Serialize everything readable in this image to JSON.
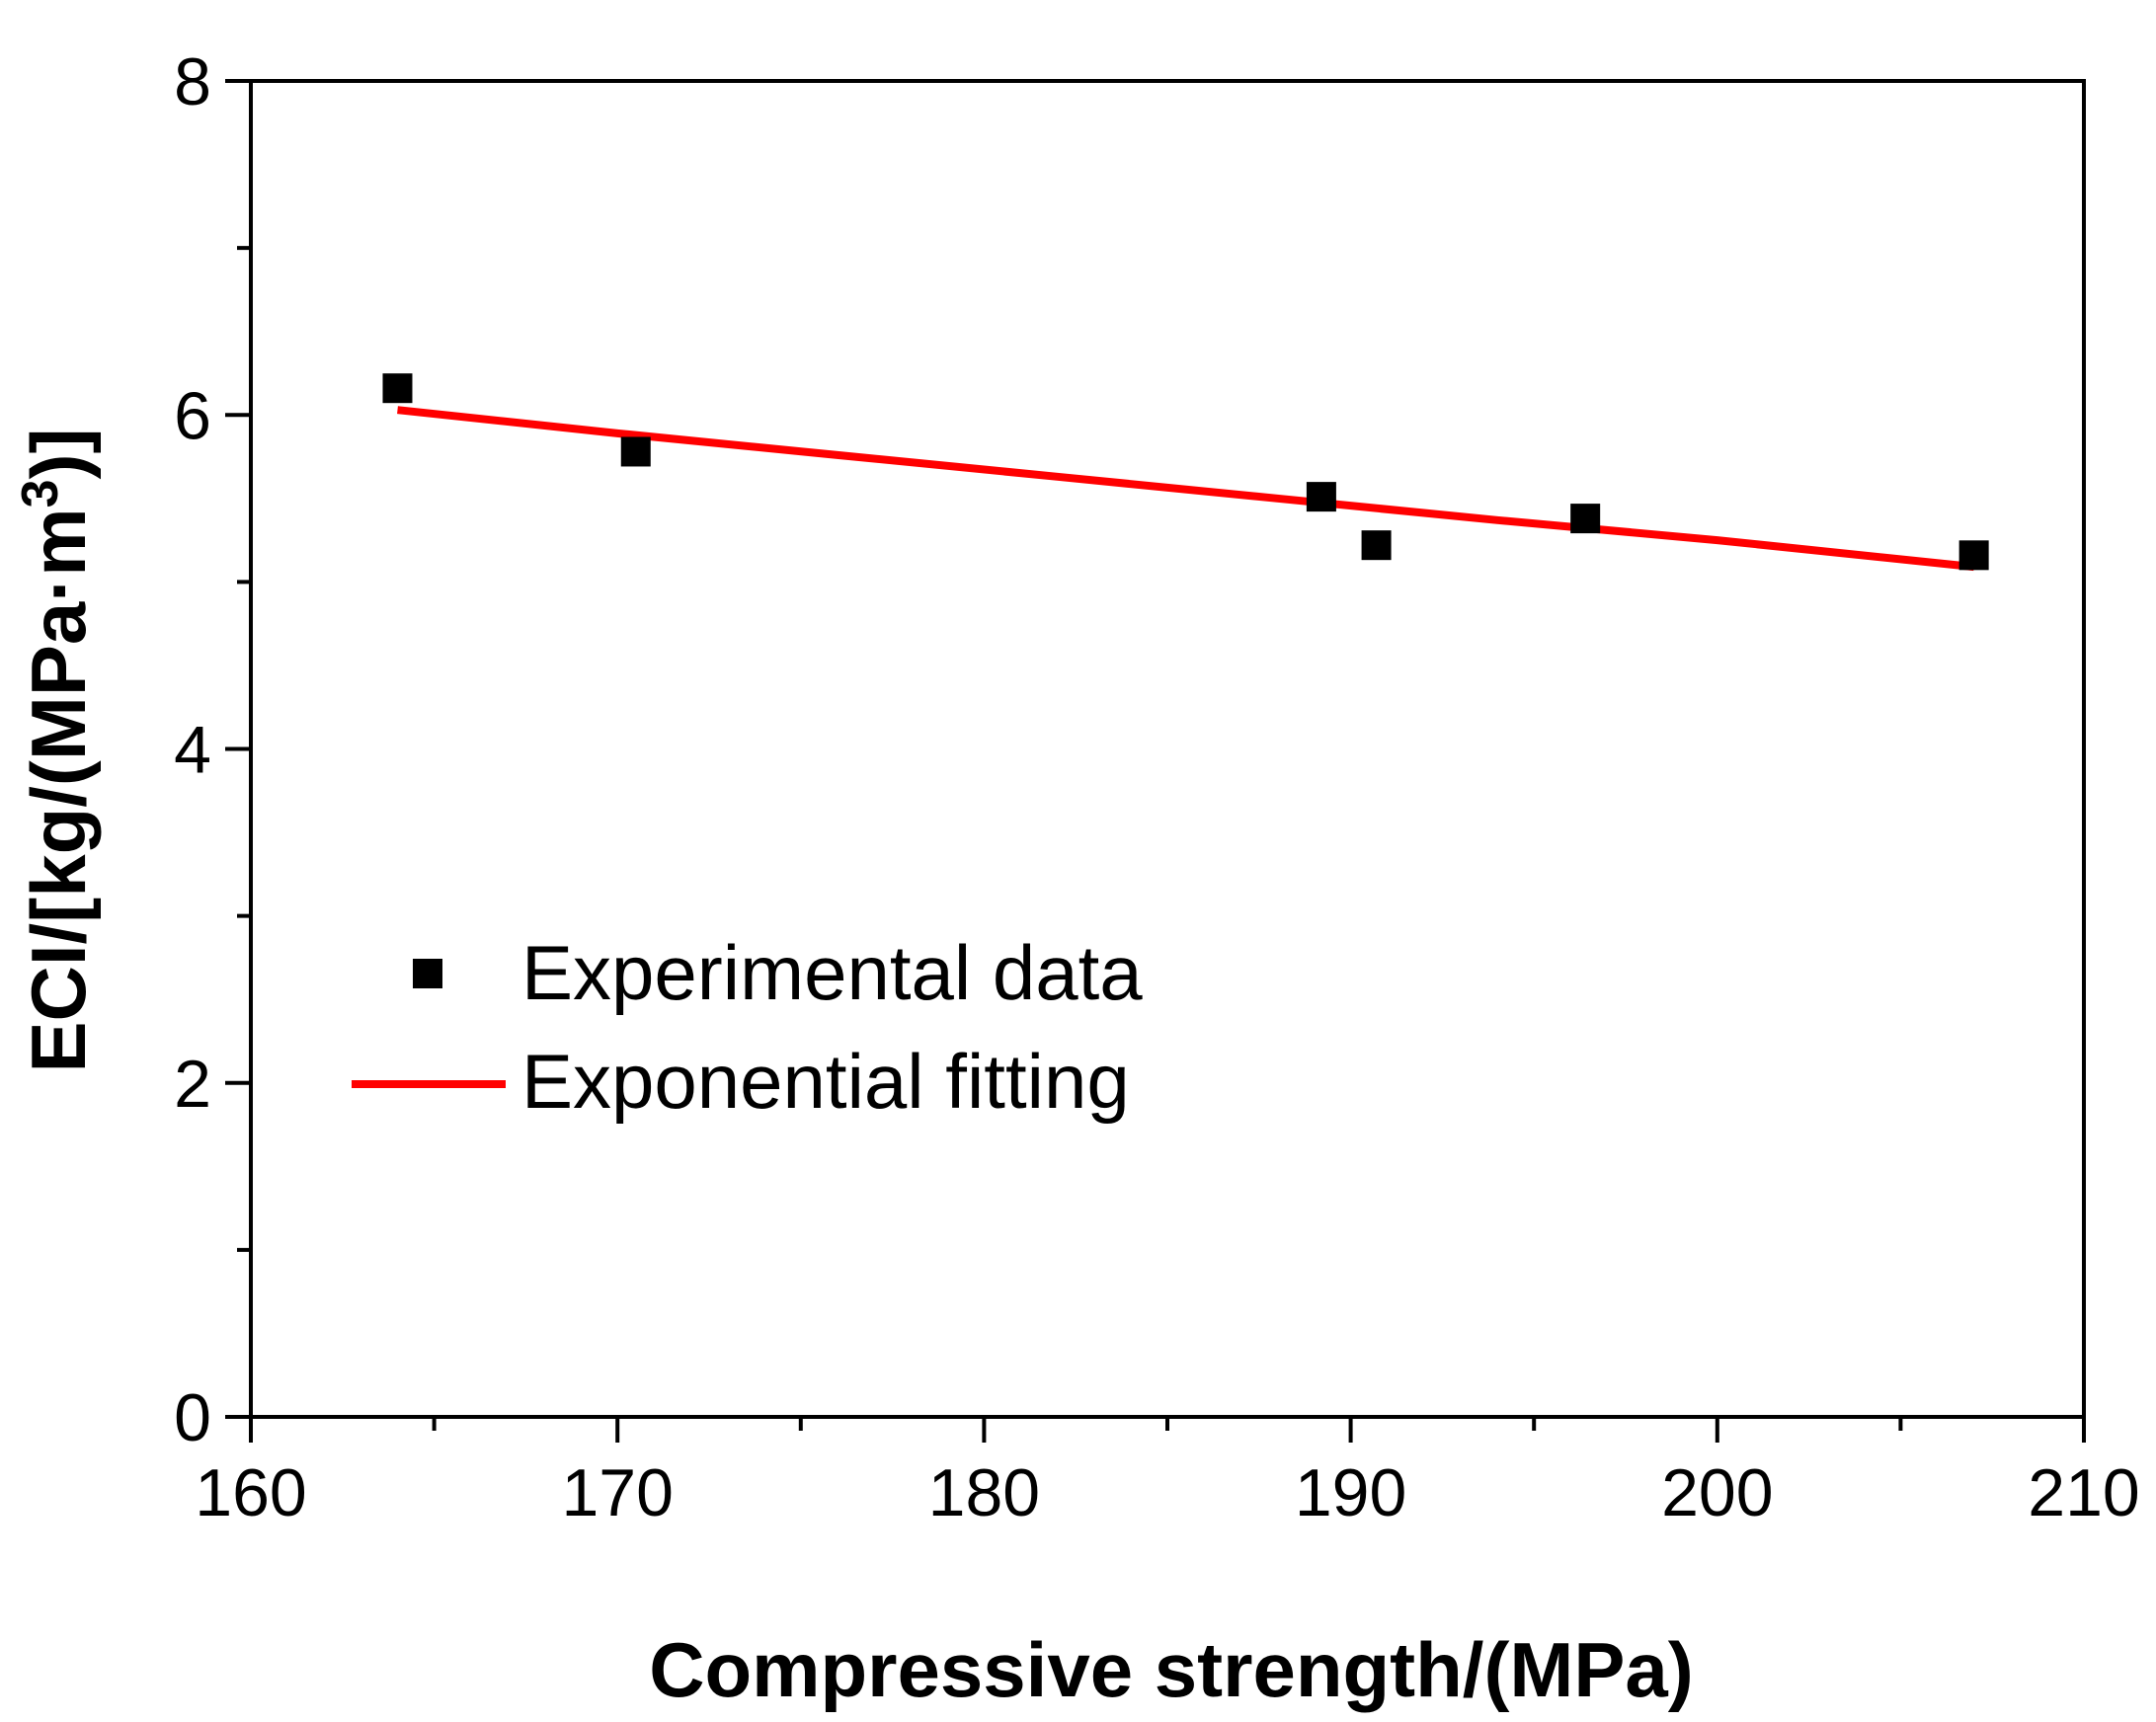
{
  "chart_data": {
    "type": "scatter",
    "title": "",
    "xlabel": "Compressive strength/(MPa)",
    "ylabel": {
      "main": "ECI/[kg/(MPa·m",
      "sup": "3",
      "end": ")]"
    },
    "xlim": [
      160,
      210
    ],
    "ylim": [
      0,
      8
    ],
    "x_ticks": [
      160,
      170,
      180,
      190,
      200,
      210
    ],
    "x_tick_labels": [
      "160",
      "170",
      "180",
      "190",
      "200",
      "210"
    ],
    "x_minor_ticks": [
      165,
      175,
      185,
      195,
      205
    ],
    "y_ticks": [
      0,
      2,
      4,
      6,
      8
    ],
    "y_tick_labels": [
      "0",
      "2",
      "4",
      "6",
      "8"
    ],
    "y_minor_ticks": [
      1,
      3,
      5,
      7
    ],
    "grid": false,
    "legend_position": "center-left",
    "series": [
      {
        "name": "Experimental data",
        "kind": "scatter",
        "marker": "square",
        "color": "#000000",
        "x": [
          164.0,
          170.5,
          189.2,
          190.7,
          196.4,
          207.0
        ],
        "y": [
          6.16,
          5.78,
          5.51,
          5.22,
          5.38,
          5.16
        ]
      },
      {
        "name": "Exponential fitting",
        "kind": "line",
        "color": "#ff0000",
        "x": [
          164.0,
          170.0,
          176.0,
          182.0,
          188.0,
          194.0,
          200.0,
          207.0
        ],
        "y": [
          6.03,
          5.89,
          5.76,
          5.63,
          5.5,
          5.37,
          5.25,
          5.09
        ]
      }
    ]
  }
}
